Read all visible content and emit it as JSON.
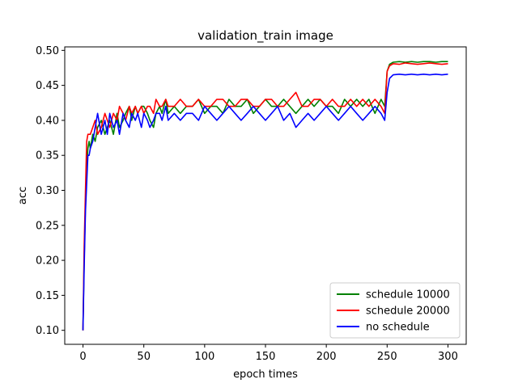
{
  "chart_data": {
    "type": "line",
    "title": "validation_train image",
    "xlabel": "epoch times",
    "ylabel": "acc",
    "xlim": [
      -15,
      315
    ],
    "ylim": [
      0.08,
      0.505
    ],
    "xticks": [
      0,
      50,
      100,
      150,
      200,
      250,
      300
    ],
    "yticks": [
      0.1,
      0.15,
      0.2,
      0.25,
      0.3,
      0.35,
      0.4,
      0.45,
      0.5
    ],
    "ytick_labels": [
      "0.10",
      "0.15",
      "0.20",
      "0.25",
      "0.30",
      "0.35",
      "0.40",
      "0.45",
      "0.50"
    ],
    "grid": false,
    "legend_position": "lower right",
    "series": [
      {
        "name": "schedule 10000",
        "color": "#008000",
        "x": [
          0,
          1,
          2,
          3,
          4,
          5,
          6,
          8,
          10,
          12,
          15,
          18,
          20,
          22,
          25,
          28,
          30,
          33,
          35,
          38,
          40,
          43,
          45,
          48,
          50,
          53,
          55,
          58,
          60,
          63,
          65,
          68,
          70,
          75,
          80,
          85,
          90,
          95,
          100,
          105,
          110,
          115,
          120,
          125,
          130,
          135,
          140,
          145,
          150,
          155,
          160,
          165,
          170,
          175,
          180,
          185,
          190,
          195,
          200,
          205,
          210,
          215,
          220,
          225,
          230,
          235,
          240,
          245,
          248,
          250,
          252,
          255,
          260,
          265,
          270,
          275,
          280,
          285,
          290,
          295,
          300
        ],
        "y": [
          0.1,
          0.2,
          0.28,
          0.33,
          0.36,
          0.37,
          0.36,
          0.38,
          0.37,
          0.39,
          0.4,
          0.38,
          0.39,
          0.4,
          0.38,
          0.41,
          0.39,
          0.4,
          0.41,
          0.42,
          0.4,
          0.42,
          0.41,
          0.42,
          0.42,
          0.41,
          0.4,
          0.39,
          0.41,
          0.42,
          0.41,
          0.43,
          0.41,
          0.42,
          0.41,
          0.42,
          0.42,
          0.43,
          0.41,
          0.42,
          0.42,
          0.41,
          0.43,
          0.42,
          0.42,
          0.43,
          0.41,
          0.42,
          0.43,
          0.42,
          0.42,
          0.43,
          0.42,
          0.41,
          0.42,
          0.43,
          0.42,
          0.43,
          0.42,
          0.42,
          0.41,
          0.43,
          0.42,
          0.43,
          0.42,
          0.43,
          0.41,
          0.43,
          0.42,
          0.47,
          0.48,
          0.483,
          0.484,
          0.483,
          0.484,
          0.483,
          0.484,
          0.484,
          0.483,
          0.484,
          0.484
        ]
      },
      {
        "name": "schedule 20000",
        "color": "#ff0000",
        "x": [
          0,
          1,
          2,
          3,
          4,
          5,
          6,
          8,
          10,
          12,
          15,
          18,
          20,
          22,
          25,
          28,
          30,
          33,
          35,
          38,
          40,
          43,
          45,
          48,
          50,
          53,
          55,
          58,
          60,
          63,
          65,
          68,
          70,
          75,
          80,
          85,
          90,
          95,
          100,
          105,
          110,
          115,
          120,
          125,
          130,
          135,
          140,
          145,
          150,
          155,
          160,
          165,
          170,
          175,
          180,
          185,
          190,
          195,
          200,
          205,
          210,
          215,
          220,
          225,
          230,
          235,
          240,
          245,
          248,
          250,
          252,
          255,
          260,
          265,
          270,
          275,
          280,
          285,
          290,
          295,
          300
        ],
        "y": [
          0.1,
          0.22,
          0.3,
          0.37,
          0.38,
          0.38,
          0.38,
          0.39,
          0.4,
          0.38,
          0.39,
          0.41,
          0.4,
          0.39,
          0.41,
          0.4,
          0.42,
          0.41,
          0.4,
          0.42,
          0.41,
          0.42,
          0.41,
          0.42,
          0.41,
          0.42,
          0.42,
          0.41,
          0.43,
          0.42,
          0.42,
          0.43,
          0.42,
          0.42,
          0.43,
          0.42,
          0.42,
          0.43,
          0.42,
          0.42,
          0.43,
          0.43,
          0.42,
          0.42,
          0.43,
          0.43,
          0.42,
          0.42,
          0.43,
          0.43,
          0.42,
          0.42,
          0.43,
          0.44,
          0.42,
          0.42,
          0.43,
          0.43,
          0.42,
          0.43,
          0.42,
          0.42,
          0.43,
          0.42,
          0.43,
          0.42,
          0.43,
          0.42,
          0.41,
          0.47,
          0.478,
          0.481,
          0.48,
          0.482,
          0.481,
          0.48,
          0.481,
          0.482,
          0.481,
          0.48,
          0.481
        ]
      },
      {
        "name": "no schedule",
        "color": "#0000ff",
        "x": [
          0,
          1,
          2,
          3,
          4,
          5,
          6,
          8,
          10,
          12,
          15,
          18,
          20,
          22,
          25,
          28,
          30,
          33,
          35,
          38,
          40,
          43,
          45,
          48,
          50,
          53,
          55,
          58,
          60,
          63,
          65,
          68,
          70,
          75,
          80,
          85,
          90,
          95,
          100,
          105,
          110,
          115,
          120,
          125,
          130,
          135,
          140,
          145,
          150,
          155,
          160,
          165,
          170,
          175,
          180,
          185,
          190,
          195,
          200,
          205,
          210,
          215,
          220,
          225,
          230,
          235,
          240,
          245,
          248,
          250,
          252,
          255,
          260,
          265,
          270,
          275,
          280,
          285,
          290,
          295,
          300
        ],
        "y": [
          0.1,
          0.19,
          0.27,
          0.31,
          0.35,
          0.35,
          0.36,
          0.37,
          0.39,
          0.41,
          0.38,
          0.4,
          0.38,
          0.41,
          0.39,
          0.4,
          0.38,
          0.41,
          0.4,
          0.39,
          0.41,
          0.4,
          0.41,
          0.39,
          0.41,
          0.4,
          0.39,
          0.4,
          0.41,
          0.41,
          0.4,
          0.42,
          0.4,
          0.41,
          0.4,
          0.41,
          0.41,
          0.4,
          0.42,
          0.41,
          0.4,
          0.41,
          0.42,
          0.41,
          0.4,
          0.41,
          0.42,
          0.41,
          0.4,
          0.41,
          0.42,
          0.4,
          0.41,
          0.39,
          0.4,
          0.41,
          0.4,
          0.41,
          0.42,
          0.41,
          0.4,
          0.41,
          0.42,
          0.41,
          0.4,
          0.41,
          0.42,
          0.41,
          0.4,
          0.44,
          0.46,
          0.465,
          0.466,
          0.465,
          0.466,
          0.465,
          0.466,
          0.465,
          0.466,
          0.465,
          0.466
        ]
      }
    ]
  }
}
